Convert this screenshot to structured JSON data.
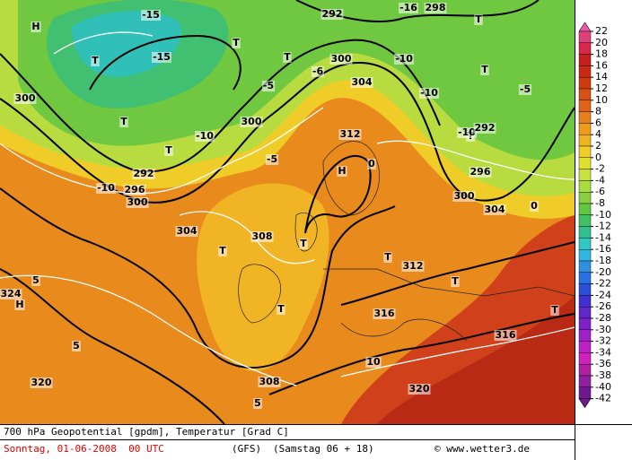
{
  "colorbar": {
    "ticks": [
      22,
      20,
      18,
      16,
      14,
      12,
      10,
      8,
      6,
      4,
      2,
      0,
      -2,
      -4,
      -6,
      -8,
      -10,
      -12,
      -14,
      -16,
      -18,
      -20,
      -22,
      -24,
      -26,
      -28,
      -30,
      -32,
      -34,
      -36,
      -38,
      -40,
      -42
    ],
    "colors": [
      "#e85aa8",
      "#e0407a",
      "#d8284a",
      "#c81e1e",
      "#c82a14",
      "#d03c10",
      "#d85014",
      "#e06418",
      "#e8801c",
      "#f09a1c",
      "#f0b420",
      "#f0cc28",
      "#e0e030",
      "#c8e040",
      "#a8dc40",
      "#88d040",
      "#60c840",
      "#40c060",
      "#30c090",
      "#30c8c0",
      "#30b8e0",
      "#3090e0",
      "#2870e0",
      "#2850d8",
      "#4030d0",
      "#6028c8",
      "#8020c8",
      "#a020c8",
      "#c020c8",
      "#d020c0",
      "#b020a0",
      "#9020a0",
      "#701890"
    ]
  },
  "map_labels": [
    "H",
    "T",
    "T",
    "T",
    "T",
    "T",
    "T",
    "T",
    "T",
    "H",
    "T",
    "T",
    "T",
    "T",
    "T",
    "H",
    "T",
    "300",
    "300",
    "300",
    "300",
    "300",
    "-15",
    "-15",
    "-10",
    "-10",
    "-10",
    "-10",
    "-10",
    "-5",
    "-5",
    "-6",
    "-5",
    "0",
    "0",
    "5",
    "5",
    "5",
    "10",
    "312",
    "304",
    "308",
    "316",
    "320",
    "320",
    "324",
    "292",
    "296",
    "304",
    "308",
    "312",
    "316",
    "304",
    "296",
    "292",
    "298",
    "292",
    "-16"
  ],
  "footer": {
    "title": "700 hPa Geopotential [gpdm], Temperatur [Grad C]",
    "date": "Sonntag, 01-06-2008  00 UTC",
    "model": "(GFS)",
    "run": "(Samstag 06 + 18)",
    "credit": "© www.wetter3.de"
  }
}
